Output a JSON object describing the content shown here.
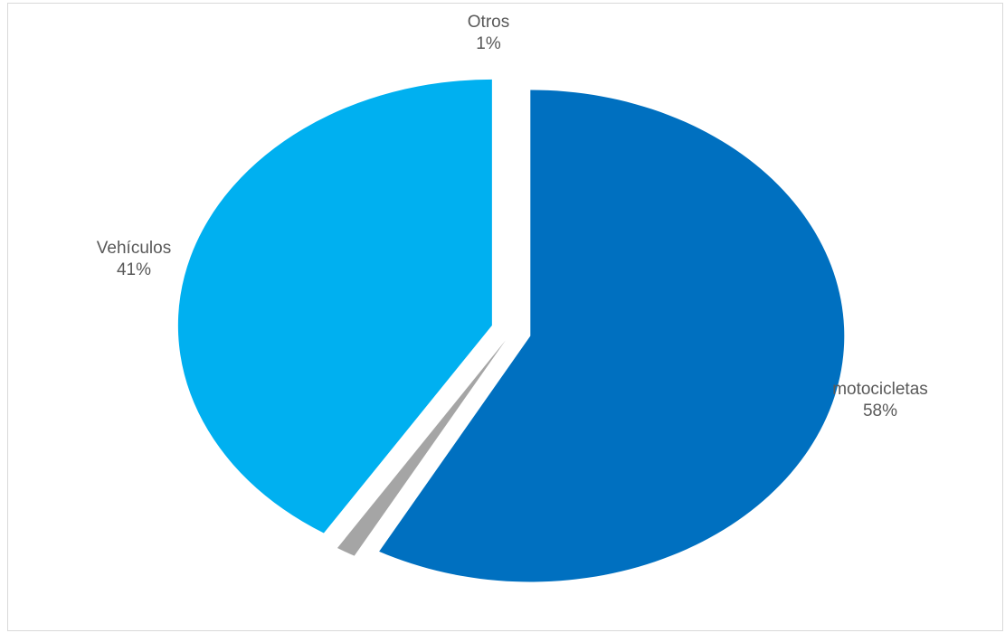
{
  "chart_data": {
    "type": "pie",
    "title": "",
    "slices": [
      {
        "category": "motocicletas",
        "value": 58,
        "percent_label": "58%",
        "color": "#0070C0"
      },
      {
        "category": "Otros",
        "value": 1,
        "percent_label": "1%",
        "color": "#A5A5A5"
      },
      {
        "category": "Vehículos",
        "value": 41,
        "percent_label": "41%",
        "color": "#00B0F0"
      }
    ],
    "exploded": true,
    "legend": "none",
    "data_labels": "category-and-percent"
  }
}
